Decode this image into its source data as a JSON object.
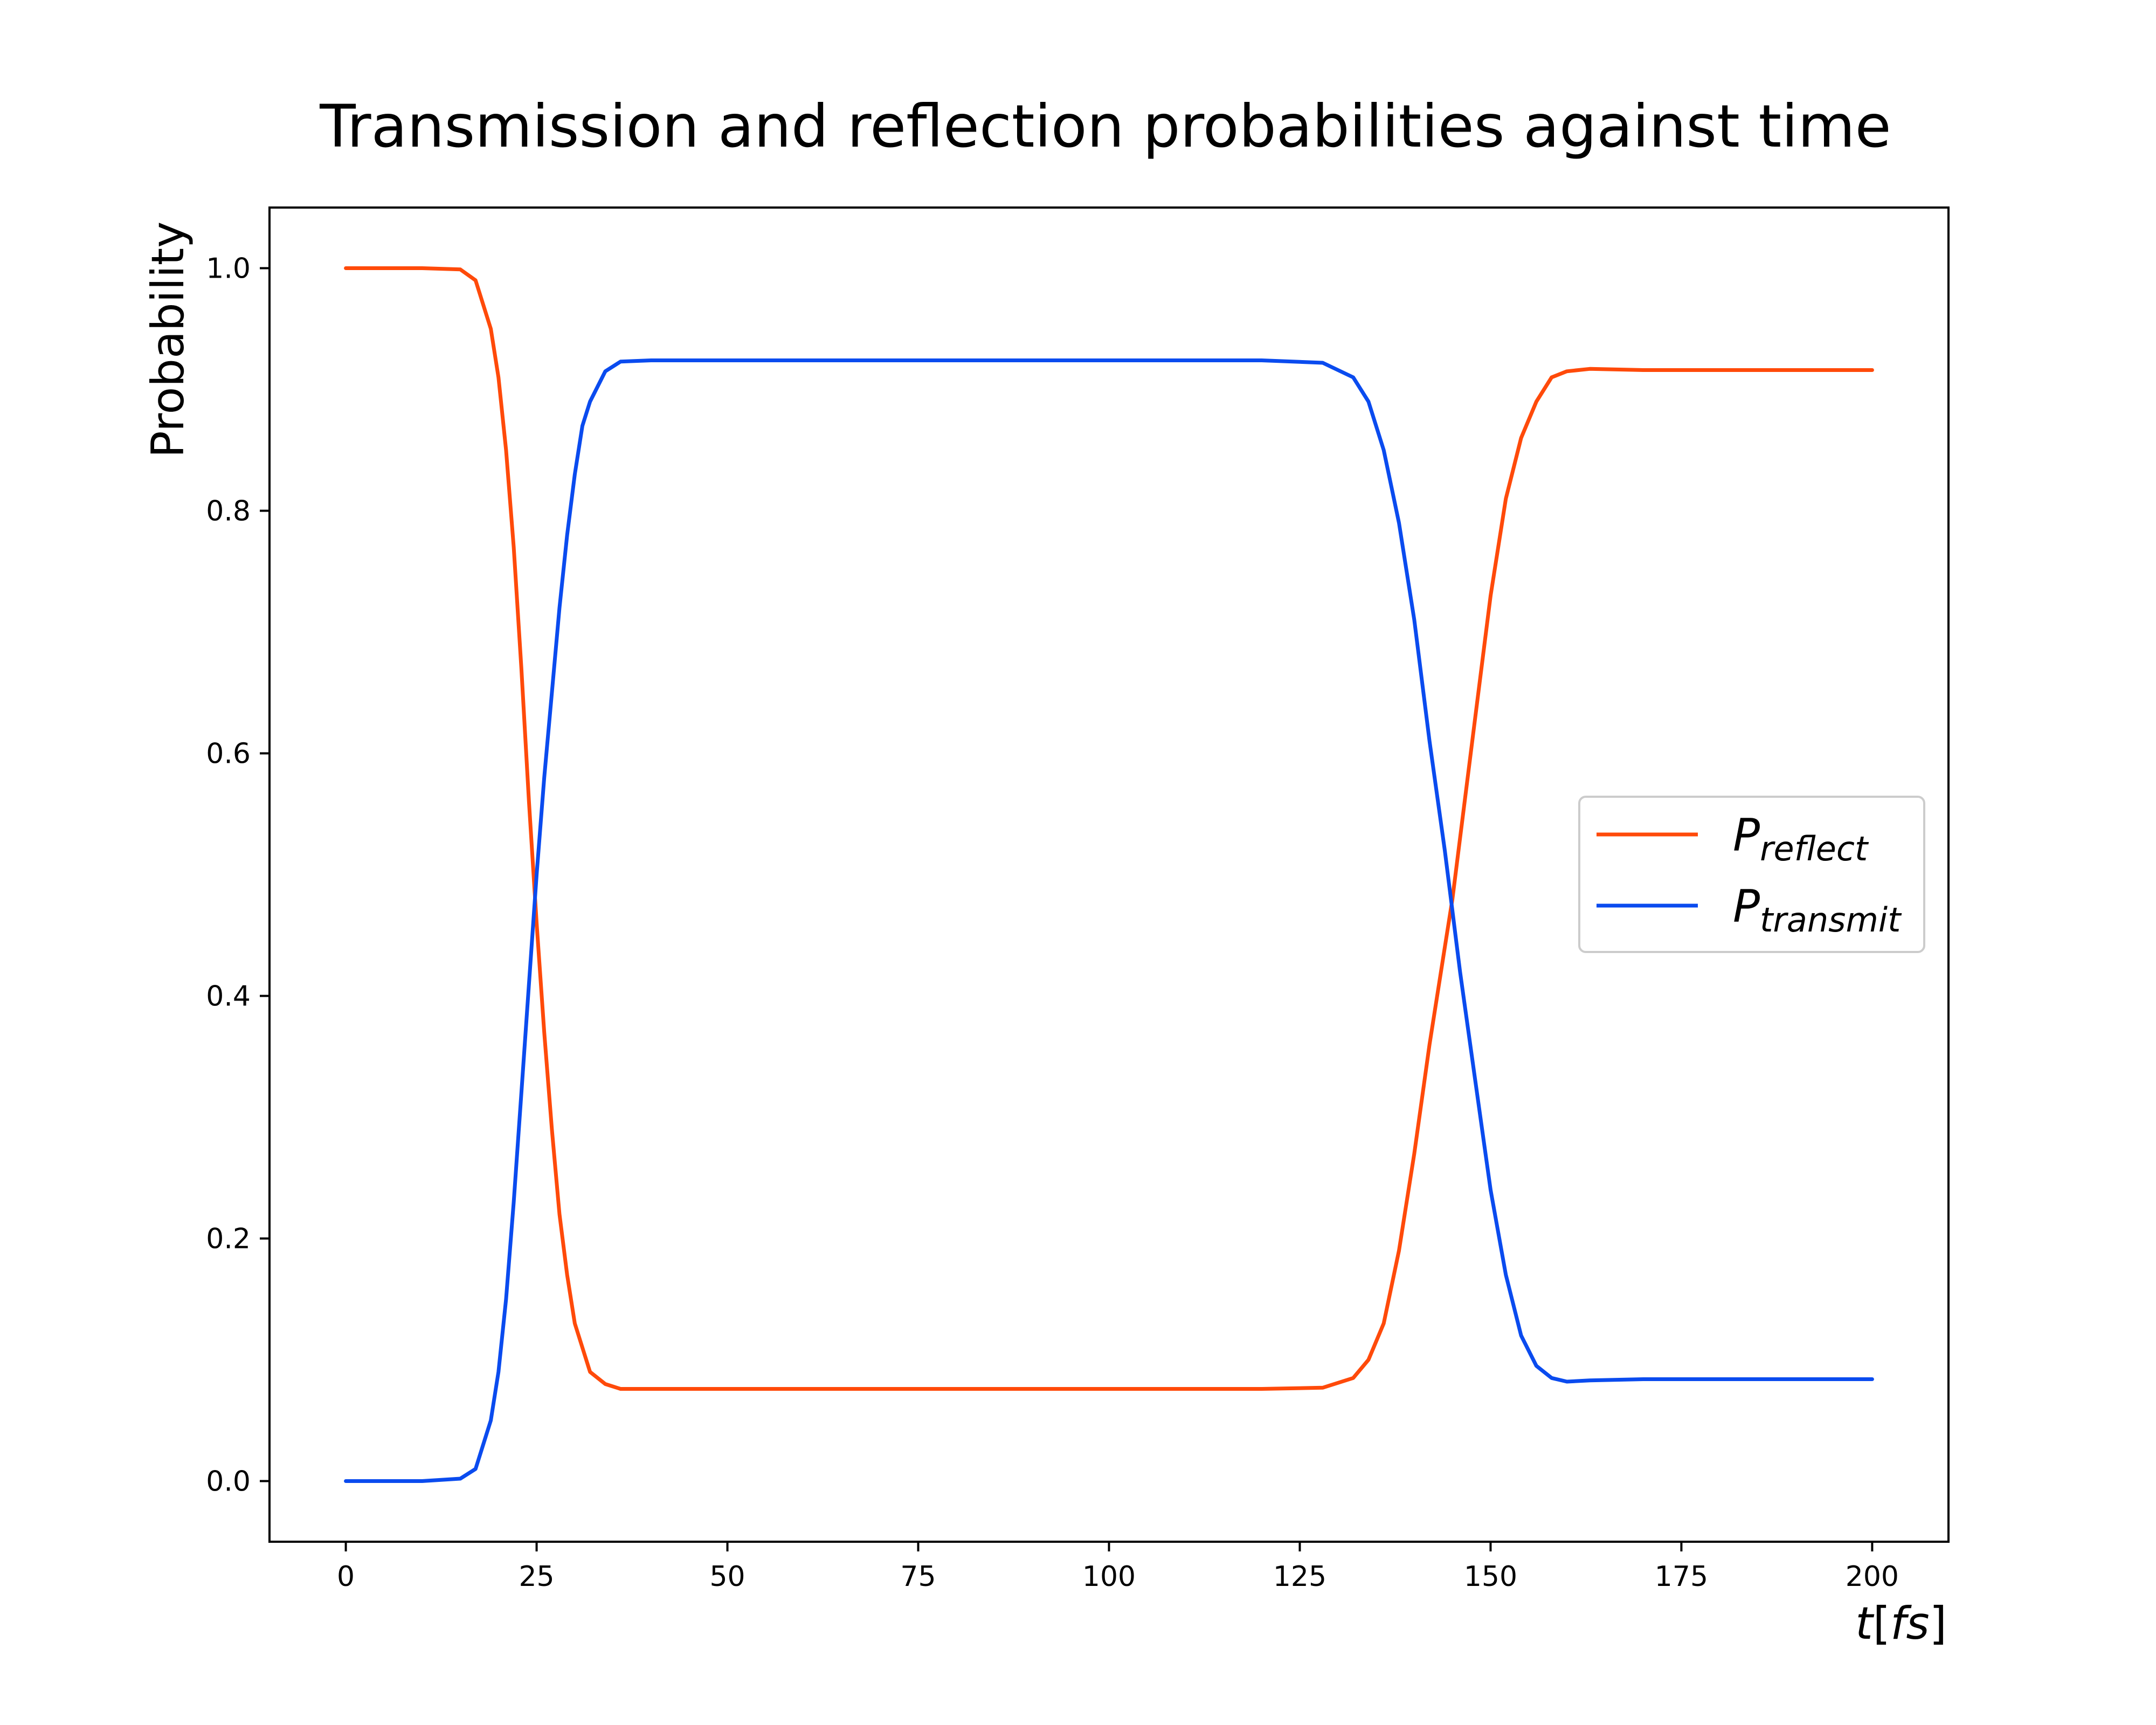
{
  "chart_data": {
    "type": "line",
    "title": "Transmission and reflection probabilities against time",
    "xlabel_var": "t",
    "xlabel_unit": "fs",
    "ylabel": "Probability",
    "xlim": [
      -10,
      210
    ],
    "ylim": [
      -0.05,
      1.05
    ],
    "xticks": [
      0,
      25,
      50,
      75,
      100,
      125,
      150,
      175,
      200
    ],
    "yticks": [
      0.0,
      0.2,
      0.4,
      0.6,
      0.8,
      1.0
    ],
    "ytick_labels": [
      "0.0",
      "0.2",
      "0.4",
      "0.6",
      "0.8",
      "1.0"
    ],
    "grid": false,
    "legend_position": "center-right",
    "series": [
      {
        "symbol": "P",
        "subscript": "reflect",
        "color": "#ff4a0a",
        "x": [
          0,
          10,
          15,
          17,
          19,
          20,
          21,
          22,
          23,
          24,
          25,
          26,
          27,
          28,
          29,
          30,
          32,
          34,
          36,
          40,
          60,
          100,
          120,
          128,
          132,
          134,
          136,
          138,
          140,
          142,
          144,
          145,
          146,
          148,
          150,
          152,
          154,
          156,
          158,
          160,
          163,
          170,
          185,
          200
        ],
        "y": [
          1.0,
          1.0,
          0.999,
          0.99,
          0.95,
          0.91,
          0.85,
          0.77,
          0.67,
          0.56,
          0.46,
          0.37,
          0.29,
          0.22,
          0.17,
          0.13,
          0.09,
          0.08,
          0.076,
          0.076,
          0.076,
          0.076,
          0.076,
          0.077,
          0.085,
          0.1,
          0.13,
          0.19,
          0.27,
          0.36,
          0.44,
          0.48,
          0.53,
          0.63,
          0.73,
          0.81,
          0.86,
          0.89,
          0.91,
          0.915,
          0.917,
          0.916,
          0.916,
          0.916
        ]
      },
      {
        "symbol": "P",
        "subscript": "transmit",
        "color": "#0a4bef",
        "x": [
          0,
          10,
          15,
          17,
          19,
          20,
          21,
          22,
          23,
          24,
          25,
          26,
          27,
          28,
          29,
          30,
          31,
          32,
          34,
          36,
          40,
          60,
          100,
          120,
          128,
          132,
          134,
          136,
          138,
          140,
          142,
          144,
          145,
          146,
          148,
          150,
          152,
          154,
          156,
          158,
          160,
          163,
          170,
          185,
          200
        ],
        "y": [
          0.0,
          0.0,
          0.002,
          0.01,
          0.05,
          0.09,
          0.15,
          0.23,
          0.32,
          0.41,
          0.5,
          0.58,
          0.65,
          0.72,
          0.78,
          0.83,
          0.87,
          0.89,
          0.915,
          0.923,
          0.924,
          0.924,
          0.924,
          0.924,
          0.922,
          0.91,
          0.89,
          0.85,
          0.79,
          0.71,
          0.61,
          0.52,
          0.47,
          0.42,
          0.33,
          0.24,
          0.17,
          0.12,
          0.095,
          0.085,
          0.082,
          0.083,
          0.084,
          0.084,
          0.084
        ]
      }
    ]
  }
}
